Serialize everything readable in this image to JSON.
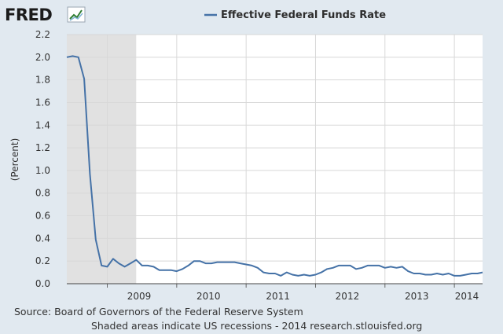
{
  "logo": {
    "text": "FRED",
    "icon": "trend-chart-icon"
  },
  "chart_data": {
    "type": "line",
    "title": "Effective Federal Funds Rate",
    "ylabel": "(Percent)",
    "xlabel": "",
    "ylim": [
      0,
      2.2
    ],
    "yticks": [
      "0.0",
      "0.2",
      "0.4",
      "0.6",
      "0.8",
      "1.0",
      "1.2",
      "1.4",
      "1.6",
      "1.8",
      "2.0",
      "2.2"
    ],
    "xticks": [
      "2009",
      "2010",
      "2011",
      "2012",
      "2013",
      "2014"
    ],
    "grid": true,
    "legend_position": "top",
    "colors": {
      "series": "#4572a7",
      "recession": "#e1e1e1",
      "plot_bg": "#ffffff",
      "page_bg": "#e1e9f0"
    },
    "recession": {
      "start": "2008-06",
      "end": "2009-06"
    },
    "series": [
      {
        "name": "Effective Federal Funds Rate",
        "x": [
          "2008-06",
          "2008-07",
          "2008-08",
          "2008-09",
          "2008-10",
          "2008-11",
          "2008-12",
          "2009-01",
          "2009-02",
          "2009-03",
          "2009-04",
          "2009-05",
          "2009-06",
          "2009-07",
          "2009-08",
          "2009-09",
          "2009-10",
          "2009-11",
          "2009-12",
          "2010-01",
          "2010-02",
          "2010-03",
          "2010-04",
          "2010-05",
          "2010-06",
          "2010-07",
          "2010-08",
          "2010-09",
          "2010-10",
          "2010-11",
          "2010-12",
          "2011-01",
          "2011-02",
          "2011-03",
          "2011-04",
          "2011-05",
          "2011-06",
          "2011-07",
          "2011-08",
          "2011-09",
          "2011-10",
          "2011-11",
          "2011-12",
          "2012-01",
          "2012-02",
          "2012-03",
          "2012-04",
          "2012-05",
          "2012-06",
          "2012-07",
          "2012-08",
          "2012-09",
          "2012-10",
          "2012-11",
          "2012-12",
          "2013-01",
          "2013-02",
          "2013-03",
          "2013-04",
          "2013-05",
          "2013-06",
          "2013-07",
          "2013-08",
          "2013-09",
          "2013-10",
          "2013-11",
          "2013-12",
          "2014-01",
          "2014-02",
          "2014-03",
          "2014-04",
          "2014-05",
          "2014-06"
        ],
        "values": [
          2.0,
          2.01,
          2.0,
          1.81,
          0.97,
          0.39,
          0.16,
          0.15,
          0.22,
          0.18,
          0.15,
          0.18,
          0.21,
          0.16,
          0.16,
          0.15,
          0.12,
          0.12,
          0.12,
          0.11,
          0.13,
          0.16,
          0.2,
          0.2,
          0.18,
          0.18,
          0.19,
          0.19,
          0.19,
          0.19,
          0.18,
          0.17,
          0.16,
          0.14,
          0.1,
          0.09,
          0.09,
          0.07,
          0.1,
          0.08,
          0.07,
          0.08,
          0.07,
          0.08,
          0.1,
          0.13,
          0.14,
          0.16,
          0.16,
          0.16,
          0.13,
          0.14,
          0.16,
          0.16,
          0.16,
          0.14,
          0.15,
          0.14,
          0.15,
          0.11,
          0.09,
          0.09,
          0.08,
          0.08,
          0.09,
          0.08,
          0.09,
          0.07,
          0.07,
          0.08,
          0.09,
          0.09,
          0.1
        ]
      }
    ]
  },
  "footer": {
    "source": "Source: Board of Governors of the Federal Reserve System",
    "note": "Shaded areas indicate US recessions - 2014 research.stlouisfed.org"
  }
}
